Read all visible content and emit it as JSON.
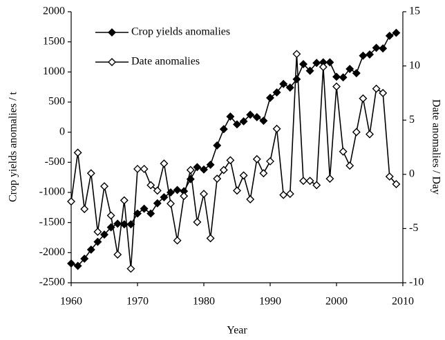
{
  "chart_data": {
    "type": "line",
    "x_label": "Year",
    "y_label": "Crop yields  anomalies / t",
    "y2_label": "Date  anomalies / Day",
    "x": [
      1960,
      1961,
      1962,
      1963,
      1964,
      1965,
      1966,
      1967,
      1968,
      1969,
      1970,
      1971,
      1972,
      1973,
      1974,
      1975,
      1976,
      1977,
      1978,
      1979,
      1980,
      1981,
      1982,
      1983,
      1984,
      1985,
      1986,
      1987,
      1988,
      1989,
      1990,
      1991,
      1992,
      1993,
      1994,
      1995,
      1996,
      1997,
      1998,
      1999,
      2000,
      2001,
      2002,
      2003,
      2004,
      2005,
      2006,
      2007,
      2008,
      2009
    ],
    "series": [
      {
        "name": "Crop yields anomalies",
        "color": "#000000",
        "marker_fill": "#000000",
        "values": [
          -2180,
          -2220,
          -2100,
          -1950,
          -1820,
          -1700,
          -1580,
          -1520,
          -1530,
          -1530,
          -1350,
          -1270,
          -1350,
          -1180,
          -1080,
          -1000,
          -960,
          -980,
          -780,
          -580,
          -620,
          -540,
          -220,
          50,
          260,
          130,
          180,
          290,
          250,
          190,
          570,
          660,
          800,
          740,
          880,
          1130,
          1020,
          1150,
          1160,
          1160,
          920,
          910,
          1050,
          980,
          1270,
          1290,
          1400,
          1390,
          1600,
          1650
        ]
      },
      {
        "name": "Date anomalies",
        "color": "#000000",
        "marker_fill": "#ffffff",
        "axis": "y2",
        "values": [
          -2.5,
          2,
          -3.2,
          0.1,
          -5.3,
          -1.1,
          -3.8,
          -7.4,
          -2.4,
          -8.7,
          0.5,
          0.5,
          -1,
          -1.5,
          1,
          -2.7,
          -6.1,
          -2,
          0.4,
          -4.4,
          -1.8,
          -5.9,
          -0.4,
          0.4,
          1.3,
          -1.5,
          -0.1,
          -2.3,
          1.4,
          0.1,
          1.2,
          4.2,
          -1.9,
          -1.8,
          11.1,
          -0.6,
          -0.6,
          -1,
          9.9,
          -0.4,
          8.1,
          2.1,
          0.8,
          3.9,
          7,
          3.7,
          7.9,
          7.5,
          -0.2,
          -0.9
        ]
      }
    ],
    "xlim": [
      1960,
      2010
    ],
    "xticks": [
      1960,
      1970,
      1980,
      1990,
      2000,
      2010
    ],
    "ylim": [
      -2500,
      2000
    ],
    "yticks": [
      -2500,
      -2000,
      -1500,
      -1000,
      -500,
      0,
      500,
      1000,
      1500,
      2000
    ],
    "y2lim": [
      -10,
      15
    ],
    "y2ticks": [
      -10,
      -5,
      0,
      5,
      10,
      15
    ],
    "legend": "upper left",
    "grid": false
  }
}
